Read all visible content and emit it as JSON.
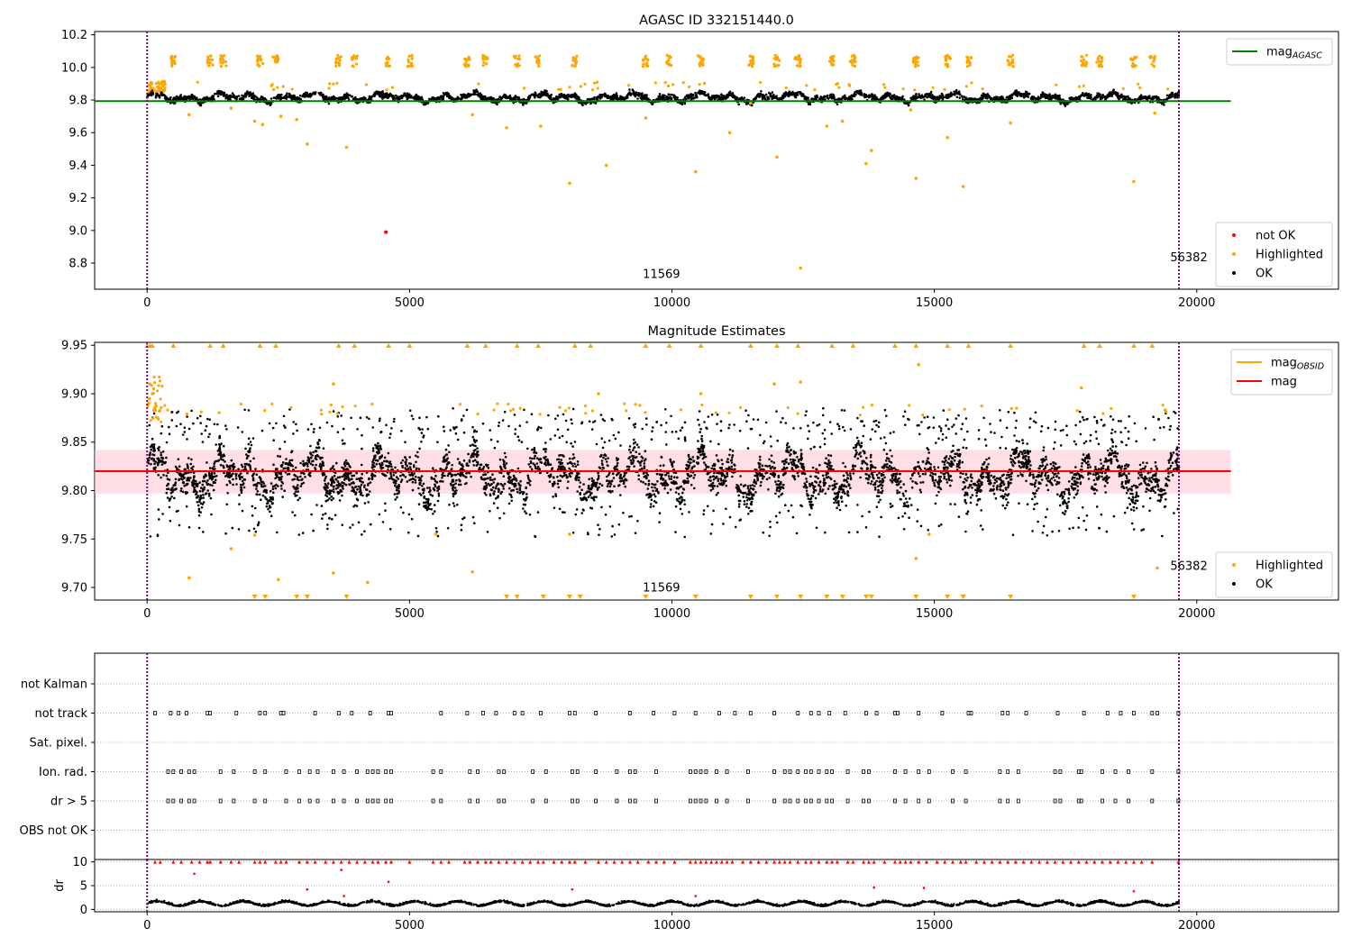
{
  "chart_data": [
    {
      "type": "scatter",
      "title": "AGASC ID 332151440.0",
      "xlim": [
        -1000,
        22700
      ],
      "ylim": [
        8.64,
        10.22
      ],
      "xticks": [
        0,
        5000,
        10000,
        15000,
        20000
      ],
      "yticks": [
        8.8,
        9.0,
        9.2,
        9.4,
        9.6,
        9.8,
        10.0,
        10.2
      ],
      "grid": false,
      "band": {
        "x_range": [
          0,
          19660
        ],
        "center": 9.815,
        "amplitude": 0.035,
        "noise": 0.03
      },
      "hlines": [
        {
          "y": 9.793,
          "x_range": [
            -1000,
            20650
          ],
          "color": "#008000",
          "label_base": "mag",
          "label_sub": "AGASC"
        }
      ],
      "vlines": [
        {
          "x": 0,
          "color": "#800080"
        },
        {
          "x": 19660,
          "color": "#800080"
        }
      ],
      "annotations": [
        {
          "x": 9800,
          "y": 8.71,
          "text": "11569"
        },
        {
          "x": 19850,
          "y": 8.81,
          "text": "56382"
        }
      ],
      "orange_cluster_y": 10.04,
      "orange_cluster_x": [
        500,
        1200,
        1450,
        2150,
        2450,
        3650,
        3950,
        4600,
        5000,
        6100,
        6450,
        7050,
        7450,
        8150,
        9500,
        9950,
        10550,
        11500,
        12000,
        12400,
        13050,
        13450,
        14650,
        15250,
        15650,
        16450,
        17850,
        18150,
        18800,
        19150
      ],
      "orange_outliers": [
        [
          200,
          9.88
        ],
        [
          800,
          9.71
        ],
        [
          1600,
          9.75
        ],
        [
          2050,
          9.67
        ],
        [
          2200,
          9.65
        ],
        [
          2550,
          9.7
        ],
        [
          2850,
          9.68
        ],
        [
          3050,
          9.53
        ],
        [
          3800,
          9.51
        ],
        [
          6200,
          9.71
        ],
        [
          6850,
          9.63
        ],
        [
          7500,
          9.64
        ],
        [
          8050,
          9.29
        ],
        [
          8750,
          9.4
        ],
        [
          9500,
          9.69
        ],
        [
          10450,
          9.36
        ],
        [
          11100,
          9.6
        ],
        [
          11500,
          9.78
        ],
        [
          12000,
          9.45
        ],
        [
          12450,
          8.77
        ],
        [
          12950,
          9.64
        ],
        [
          13250,
          9.67
        ],
        [
          13700,
          9.41
        ],
        [
          13800,
          9.49
        ],
        [
          14550,
          9.74
        ],
        [
          14650,
          9.32
        ],
        [
          15250,
          9.57
        ],
        [
          15550,
          9.27
        ],
        [
          16450,
          9.66
        ],
        [
          18800,
          9.3
        ],
        [
          19200,
          9.72
        ]
      ],
      "series": [
        {
          "name": "not OK",
          "color": "#ff0000",
          "points": [
            [
              4550,
              8.99
            ]
          ]
        },
        {
          "name": "Highlighted",
          "color": "#ffa500"
        },
        {
          "name": "OK",
          "color": "#000000"
        }
      ],
      "legends": [
        {
          "position": "upper-right",
          "entries": [
            {
              "kind": "line",
              "color": "#008000",
              "base": "mag",
              "sub": "AGASC"
            }
          ]
        },
        {
          "position": "lower-right",
          "entries": [
            {
              "kind": "dot",
              "color": "#ff0000",
              "label": "not OK"
            },
            {
              "kind": "dot",
              "color": "#ffa500",
              "label": "Highlighted"
            },
            {
              "kind": "dot",
              "color": "#000000",
              "label": "OK"
            }
          ]
        }
      ]
    },
    {
      "type": "scatter",
      "title": "Magnitude Estimates",
      "xlim": [
        -1000,
        22700
      ],
      "ylim": [
        9.687,
        9.953
      ],
      "xticks": [
        0,
        5000,
        10000,
        15000,
        20000
      ],
      "yticks": [
        9.7,
        9.75,
        9.8,
        9.85,
        9.9,
        9.95
      ],
      "ytick_labels": [
        "9.70",
        "9.75",
        "9.80",
        "9.85",
        "9.90",
        "9.95"
      ],
      "grid": false,
      "band": {
        "x_range": [
          0,
          19660
        ],
        "center": 9.815,
        "amplitude": 0.03,
        "noise": 0.028
      },
      "shaded_band": {
        "y_range": [
          9.797,
          9.842
        ],
        "x_range": [
          -1000,
          20650
        ],
        "color": "#ffc0c8"
      },
      "hlines": [
        {
          "y": 9.82,
          "x_range": [
            -1000,
            20650
          ],
          "color": "#ff0000",
          "label": "mag"
        }
      ],
      "vlines": [
        {
          "x": 0,
          "color": "#800080"
        },
        {
          "x": 19660,
          "color": "#800080"
        }
      ],
      "annotations": [
        {
          "x": 9800,
          "y": 9.696,
          "text": "11569"
        },
        {
          "x": 19850,
          "y": 9.718,
          "text": "56382"
        }
      ],
      "orange_top_x": [
        0,
        50,
        100,
        500,
        1200,
        1450,
        2150,
        2450,
        3650,
        3950,
        4600,
        5000,
        6100,
        6450,
        7050,
        7450,
        8150,
        8450,
        9500,
        9950,
        10550,
        11500,
        12000,
        12400,
        13050,
        13450,
        14250,
        14650,
        15250,
        15650,
        16450,
        17850,
        18150,
        18800,
        19150
      ],
      "orange_bottom_x": [
        2050,
        2250,
        2850,
        3050,
        3800,
        6850,
        7050,
        7550,
        8050,
        8250,
        9500,
        10450,
        11500,
        12000,
        12450,
        12950,
        13250,
        13700,
        13800,
        14650,
        15250,
        15550,
        16450,
        18800
      ],
      "orange_outliers": [
        [
          50,
          9.91
        ],
        [
          30,
          9.89
        ],
        [
          100,
          9.9
        ],
        [
          800,
          9.71
        ],
        [
          1600,
          9.74
        ],
        [
          2050,
          9.754
        ],
        [
          2500,
          9.708
        ],
        [
          3550,
          9.715
        ],
        [
          4200,
          9.705
        ],
        [
          5500,
          9.755
        ],
        [
          6200,
          9.716
        ],
        [
          8050,
          9.755
        ],
        [
          14650,
          9.73
        ],
        [
          14900,
          9.755
        ],
        [
          19250,
          9.72
        ],
        [
          10550,
          9.9
        ],
        [
          11950,
          9.91
        ],
        [
          12450,
          9.912
        ],
        [
          14700,
          9.93
        ],
        [
          3550,
          9.91
        ],
        [
          8600,
          9.9
        ],
        [
          17800,
          9.906
        ]
      ],
      "series": [
        {
          "name": "Highlighted",
          "color": "#ffa500"
        },
        {
          "name": "OK",
          "color": "#000000"
        }
      ],
      "legends": [
        {
          "position": "upper-right",
          "entries": [
            {
              "kind": "line",
              "color": "#ffa500",
              "base": "mag",
              "sub": "OBSID"
            },
            {
              "kind": "line",
              "color": "#ff0000",
              "label": "mag"
            }
          ]
        },
        {
          "position": "lower-right",
          "entries": [
            {
              "kind": "dot",
              "color": "#ffa500",
              "label": "Highlighted"
            },
            {
              "kind": "dot",
              "color": "#000000",
              "label": "OK"
            }
          ]
        }
      ]
    },
    {
      "type": "scatter",
      "title": "",
      "xlim": [
        -1000,
        22700
      ],
      "categories": [
        "not Kalman",
        "not track",
        "Sat. pixel.",
        "Ion. rad.",
        "dr > 5",
        "OBS not OK"
      ],
      "vlines": [
        {
          "x": 0,
          "color": "#800080"
        },
        {
          "x": 19660,
          "color": "#800080"
        }
      ],
      "flag_rows": {
        "not track": [
          150,
          450,
          600,
          750,
          1150,
          1200,
          1700,
          2150,
          2250,
          2550,
          2600,
          3200,
          3650,
          3900,
          4250,
          4600,
          4650,
          5600,
          6100,
          6400,
          6650,
          7000,
          7150,
          7500,
          8050,
          8150,
          8550,
          9200,
          9650,
          10050,
          10450,
          10900,
          11200,
          11500,
          11950,
          12400,
          12650,
          12800,
          13000,
          13300,
          13700,
          13900,
          14250,
          14300,
          14700,
          15150,
          15650,
          15700,
          16300,
          16400,
          16750,
          17350,
          17850,
          18300,
          18550,
          18800,
          19150,
          19250,
          19650
        ],
        "Ion. rad.": [
          400,
          500,
          650,
          800,
          900,
          1400,
          1650,
          2050,
          2250,
          2650,
          2900,
          3100,
          3250,
          3550,
          3750,
          4000,
          4200,
          4300,
          4400,
          4550,
          4650,
          5450,
          5600,
          6150,
          6300,
          6700,
          6800,
          7350,
          7600,
          8100,
          8200,
          8550,
          8950,
          9200,
          9300,
          9700,
          10350,
          10450,
          10550,
          10650,
          10850,
          11050,
          11450,
          11950,
          12150,
          12250,
          12400,
          12550,
          12650,
          12800,
          12950,
          13050,
          13350,
          13650,
          13750,
          14250,
          14450,
          14700,
          14900,
          15350,
          15600,
          16250,
          16400,
          16600,
          17300,
          17400,
          17750,
          17800,
          18200,
          18450,
          18700,
          19150,
          19650
        ],
        "dr > 5": [
          400,
          500,
          650,
          800,
          900,
          1400,
          1650,
          2050,
          2250,
          2650,
          2900,
          3100,
          3250,
          3550,
          3750,
          4000,
          4200,
          4300,
          4400,
          4550,
          4650,
          5450,
          5600,
          6150,
          6300,
          6700,
          6800,
          7350,
          7600,
          8100,
          8200,
          8550,
          8950,
          9200,
          9300,
          9700,
          10350,
          10450,
          10550,
          10650,
          10850,
          11050,
          11450,
          11950,
          12150,
          12250,
          12400,
          12550,
          12650,
          12800,
          12950,
          13050,
          13350,
          13650,
          13750,
          14250,
          14450,
          14700,
          14900,
          15350,
          15600,
          16250,
          16400,
          16600,
          17300,
          17400,
          17750,
          17800,
          18200,
          18450,
          18700,
          19150,
          19650
        ]
      },
      "grid": true
    },
    {
      "type": "scatter",
      "title": "",
      "xlim": [
        -1000,
        22700
      ],
      "ylim": [
        -0.5,
        10.5
      ],
      "ylabel": "dr",
      "yticks": [
        0,
        5,
        10
      ],
      "grid": true,
      "vlines": [
        {
          "x": 0,
          "color": "#800080"
        },
        {
          "x": 19660,
          "color": "#800080"
        }
      ],
      "series": [
        {
          "name": "OK",
          "color": "#000000",
          "range": [
            0.2,
            2.6
          ]
        },
        {
          "name": "not OK",
          "color": "#ff0000",
          "y_capped": 10,
          "points": [
            [
              900,
              7.5
            ],
            [
              3050,
              4.2
            ],
            [
              3700,
              8.3
            ],
            [
              3750,
              2.8
            ],
            [
              4600,
              5.8
            ],
            [
              8100,
              4.2
            ],
            [
              10450,
              2.8
            ],
            [
              13850,
              4.6
            ],
            [
              14800,
              4.5
            ],
            [
              18800,
              3.8
            ]
          ]
        }
      ],
      "red_capped_x": [
        150,
        250,
        500,
        650,
        850,
        1000,
        1150,
        1200,
        1400,
        1600,
        1750,
        2050,
        2150,
        2250,
        2450,
        2550,
        2650,
        2900,
        3050,
        3200,
        3400,
        3550,
        3700,
        3850,
        4000,
        4150,
        4300,
        4400,
        4550,
        4650,
        5000,
        5450,
        5600,
        5750,
        6050,
        6150,
        6300,
        6450,
        6550,
        6700,
        6850,
        7000,
        7150,
        7300,
        7450,
        7550,
        7750,
        7900,
        8050,
        8150,
        8350,
        8600,
        8750,
        8900,
        9050,
        9200,
        9350,
        9550,
        9700,
        9850,
        10050,
        10350,
        10450,
        10550,
        10650,
        10750,
        10850,
        10950,
        11050,
        11150,
        11350,
        11500,
        11650,
        11800,
        11950,
        12050,
        12150,
        12250,
        12400,
        12550,
        12650,
        12800,
        12950,
        13050,
        13150,
        13350,
        13450,
        13650,
        13750,
        13850,
        14050,
        14250,
        14350,
        14450,
        14550,
        14700,
        14850,
        15050,
        15200,
        15350,
        15500,
        15600,
        15800,
        15950,
        16100,
        16250,
        16400,
        16550,
        16700,
        16850,
        17000,
        17150,
        17300,
        17450,
        17600,
        17750,
        17900,
        18050,
        18200,
        18350,
        18500,
        18650,
        18800,
        18950,
        19150,
        19650
      ]
    }
  ]
}
